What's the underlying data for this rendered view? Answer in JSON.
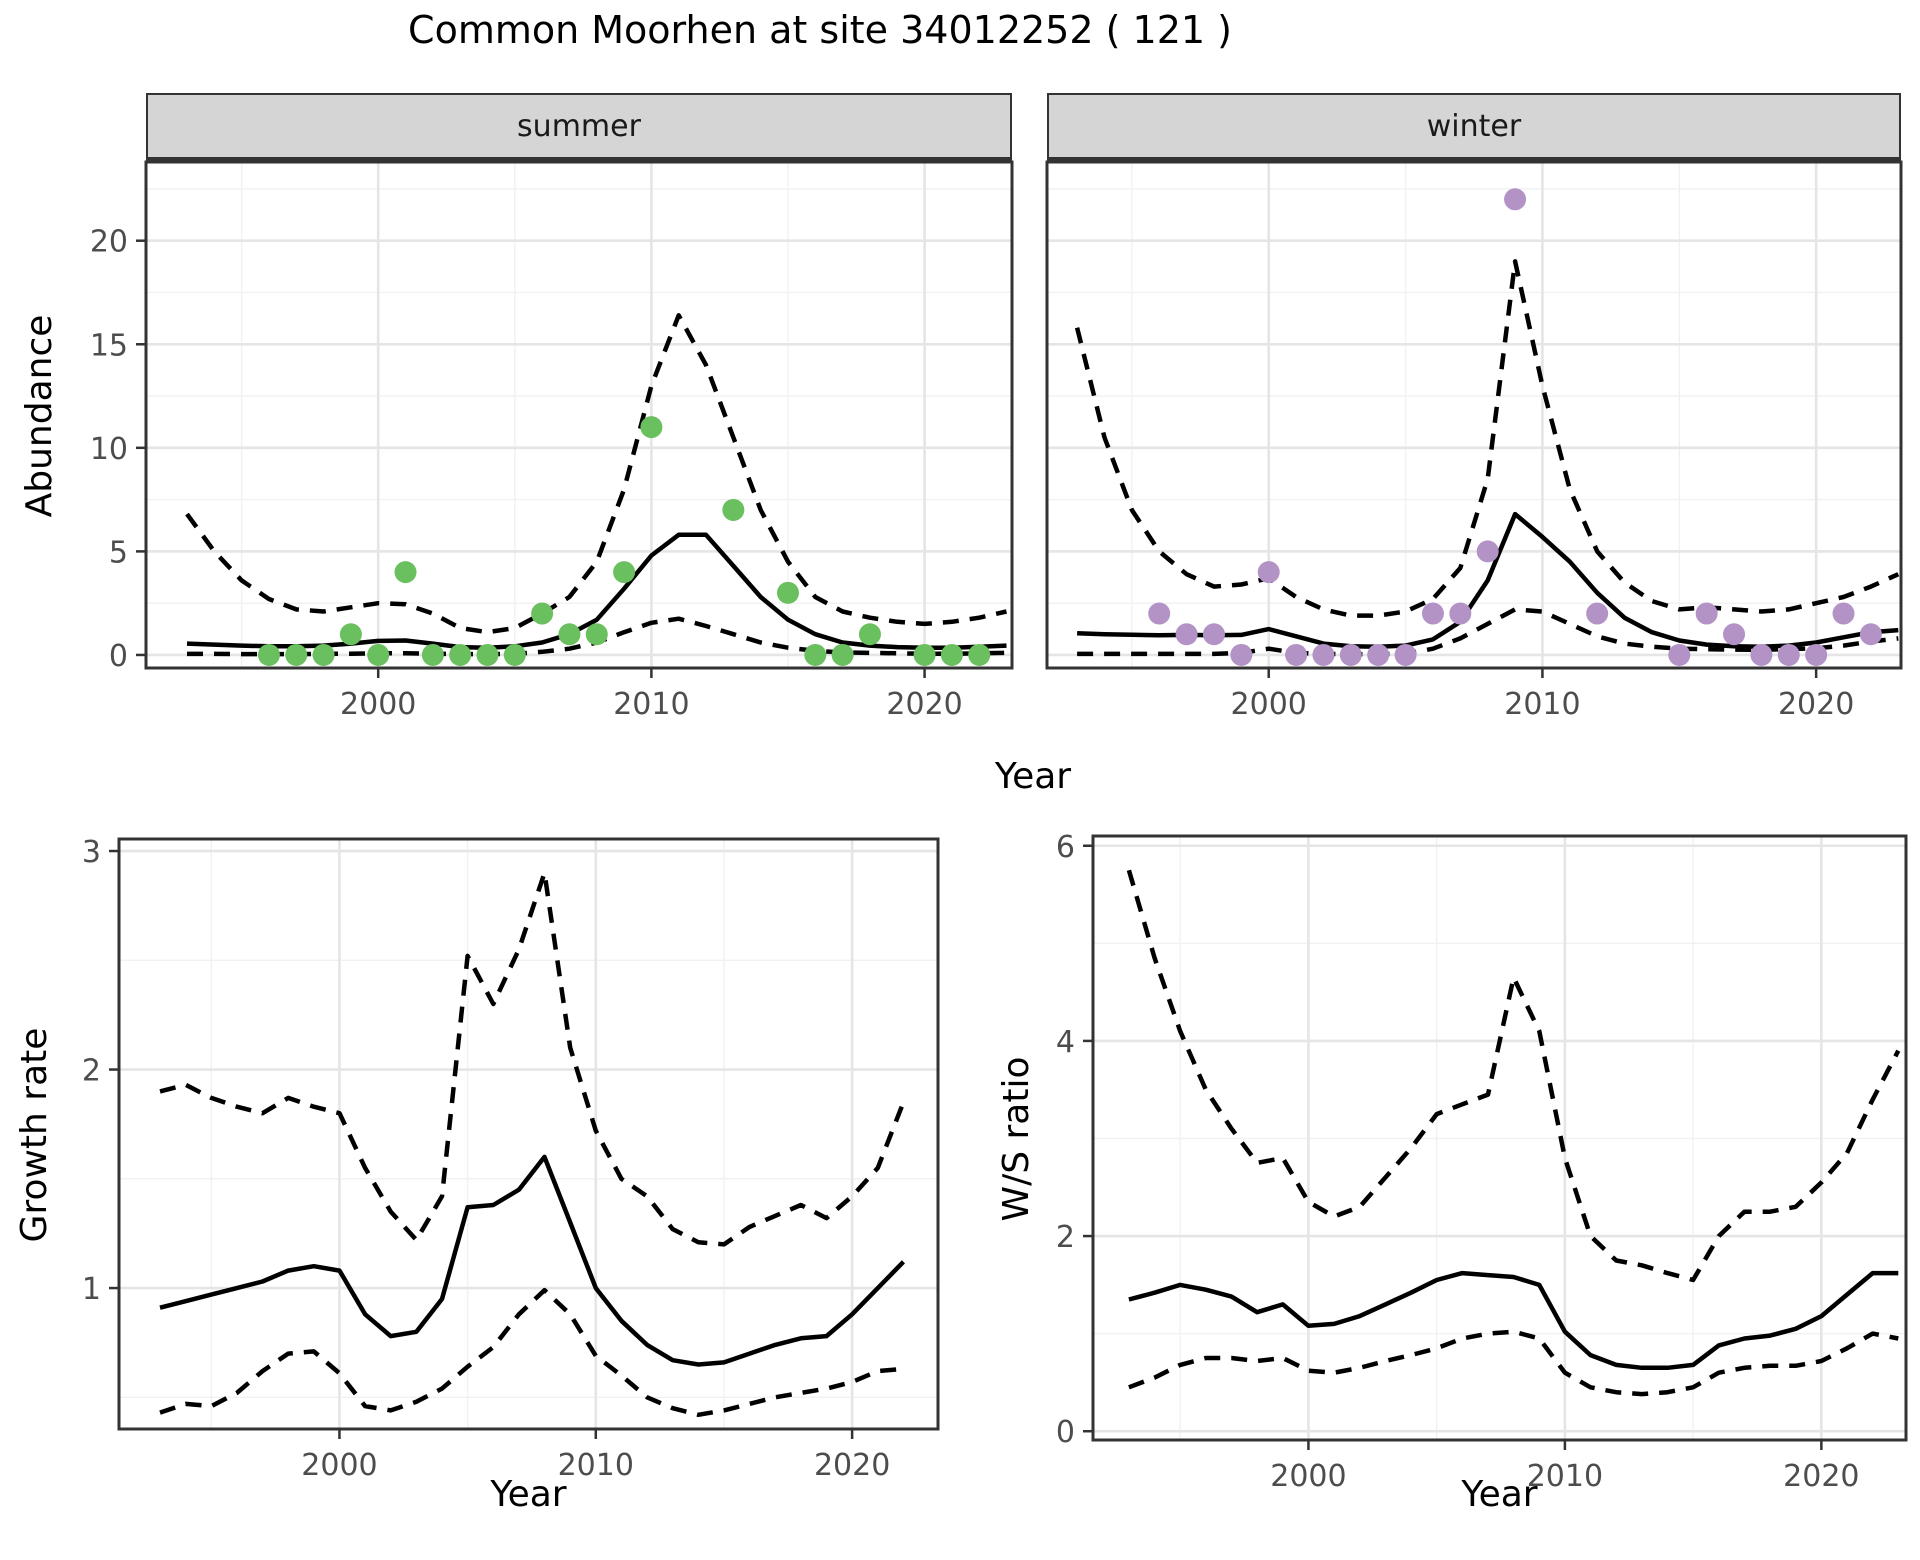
{
  "title": "Common Moorhen at site 34012252 ( 121 )",
  "facets": {
    "summer": "summer",
    "winter": "winter"
  },
  "axis_titles": {
    "abundance": "Abundance",
    "growth": "Growth rate",
    "ws": "W/S ratio",
    "year": "Year"
  },
  "colors": {
    "summer_points": "#6abf5e",
    "winter_points": "#b392c6",
    "line": "#000000",
    "grid_major": "#e5e5e5",
    "grid_minor": "#f1f1f1",
    "border": "#333333",
    "tick_mark": "#333333",
    "tick_text": "#4d4d4d",
    "strip_bg": "#d5d5d5"
  },
  "chart_data": [
    {
      "id": "summer",
      "type": "line",
      "facet_label": "summer",
      "ylabel": "Abundance",
      "xlabel": "Year",
      "xlim": [
        1991.5,
        2023.2
      ],
      "ylim": [
        -0.63,
        23.8
      ],
      "xticks": [
        2000,
        2010,
        2020
      ],
      "yticks": [
        0,
        5,
        10,
        15,
        20
      ],
      "x_minor": [
        1995,
        2005,
        2015
      ],
      "y_minor": [
        2.5,
        7.5,
        12.5,
        17.5,
        22.5
      ],
      "show_ylab": true,
      "legend": "none",
      "grid": true,
      "series": [
        {
          "name": "upper-ci",
          "style": "dashed",
          "x": [
            1993,
            1994,
            1995,
            1996,
            1997,
            1998,
            1999,
            2000,
            2001,
            2002,
            2003,
            2004,
            2005,
            2006,
            2007,
            2008,
            2009,
            2010,
            2011,
            2012,
            2013,
            2014,
            2015,
            2016,
            2017,
            2018,
            2019,
            2020,
            2021,
            2022,
            2023
          ],
          "y": [
            6.8,
            5.0,
            3.6,
            2.7,
            2.2,
            2.1,
            2.3,
            2.5,
            2.45,
            2.0,
            1.3,
            1.1,
            1.3,
            2.0,
            2.8,
            4.5,
            8.0,
            13.0,
            16.4,
            14.0,
            10.5,
            7.0,
            4.5,
            2.8,
            2.1,
            1.8,
            1.6,
            1.5,
            1.6,
            1.8,
            2.1
          ]
        },
        {
          "name": "lower-ci",
          "style": "dashed",
          "x": [
            1993,
            1994,
            1995,
            1996,
            1997,
            1998,
            1999,
            2000,
            2001,
            2002,
            2003,
            2004,
            2005,
            2006,
            2007,
            2008,
            2009,
            2010,
            2011,
            2012,
            2013,
            2014,
            2015,
            2016,
            2017,
            2018,
            2019,
            2020,
            2021,
            2022,
            2023
          ],
          "y": [
            0.05,
            0.05,
            0.04,
            0.04,
            0.04,
            0.05,
            0.06,
            0.08,
            0.08,
            0.06,
            0.04,
            0.04,
            0.05,
            0.15,
            0.3,
            0.6,
            1.1,
            1.55,
            1.75,
            1.4,
            1.0,
            0.6,
            0.35,
            0.2,
            0.12,
            0.1,
            0.08,
            0.06,
            0.06,
            0.08,
            0.1
          ]
        },
        {
          "name": "fit",
          "style": "solid",
          "x": [
            1993,
            1994,
            1995,
            1996,
            1997,
            1998,
            1999,
            2000,
            2001,
            2002,
            2003,
            2004,
            2005,
            2006,
            2007,
            2008,
            2009,
            2010,
            2011,
            2012,
            2013,
            2014,
            2015,
            2016,
            2017,
            2018,
            2019,
            2020,
            2021,
            2022,
            2023
          ],
          "y": [
            0.55,
            0.5,
            0.45,
            0.42,
            0.42,
            0.45,
            0.55,
            0.68,
            0.7,
            0.55,
            0.38,
            0.35,
            0.42,
            0.6,
            1.0,
            1.7,
            3.2,
            4.8,
            5.8,
            5.8,
            4.3,
            2.8,
            1.7,
            1.0,
            0.6,
            0.45,
            0.38,
            0.35,
            0.35,
            0.4,
            0.45
          ]
        },
        {
          "name": "observed",
          "style": "points",
          "color": "#6abf5e",
          "x": [
            1996,
            1997,
            1998,
            1999,
            2000,
            2001,
            2002,
            2003,
            2004,
            2005,
            2006,
            2007,
            2008,
            2009,
            2010,
            2013,
            2015,
            2016,
            2017,
            2018,
            2020,
            2021,
            2022
          ],
          "y": [
            0,
            0,
            0,
            1,
            0,
            4,
            0,
            0,
            0,
            0,
            2,
            1,
            1,
            4,
            11,
            7,
            3,
            0,
            0,
            1,
            0,
            0,
            0
          ]
        }
      ]
    },
    {
      "id": "winter",
      "type": "line",
      "facet_label": "winter",
      "ylabel": "Abundance",
      "xlabel": "Year",
      "xlim": [
        1991.9,
        2023.1
      ],
      "ylim": [
        -0.63,
        23.8
      ],
      "xticks": [
        2000,
        2010,
        2020
      ],
      "yticks": [
        0,
        5,
        10,
        15,
        20
      ],
      "x_minor": [
        1995,
        2005,
        2015
      ],
      "y_minor": [
        2.5,
        7.5,
        12.5,
        17.5,
        22.5
      ],
      "show_ylab": false,
      "legend": "none",
      "grid": true,
      "series": [
        {
          "name": "upper-ci",
          "style": "dashed",
          "x": [
            1993,
            1994,
            1995,
            1996,
            1997,
            1998,
            1999,
            2000,
            2001,
            2002,
            2003,
            2004,
            2005,
            2006,
            2007,
            2008,
            2009,
            2010,
            2011,
            2012,
            2013,
            2014,
            2015,
            2016,
            2017,
            2018,
            2019,
            2020,
            2021,
            2022,
            2023
          ],
          "y": [
            15.8,
            10.5,
            7.0,
            5.0,
            3.9,
            3.3,
            3.4,
            3.7,
            2.8,
            2.2,
            1.9,
            1.9,
            2.1,
            2.7,
            4.2,
            8.5,
            19.0,
            13.0,
            8.0,
            5.0,
            3.5,
            2.6,
            2.2,
            2.3,
            2.2,
            2.1,
            2.2,
            2.5,
            2.8,
            3.3,
            3.9
          ]
        },
        {
          "name": "lower-ci",
          "style": "dashed",
          "x": [
            1993,
            1994,
            1995,
            1996,
            1997,
            1998,
            1999,
            2000,
            2001,
            2002,
            2003,
            2004,
            2005,
            2006,
            2007,
            2008,
            2009,
            2010,
            2011,
            2012,
            2013,
            2014,
            2015,
            2016,
            2017,
            2018,
            2019,
            2020,
            2021,
            2022,
            2023
          ],
          "y": [
            0.05,
            0.05,
            0.05,
            0.05,
            0.05,
            0.05,
            0.1,
            0.3,
            0.1,
            0.05,
            0.04,
            0.04,
            0.05,
            0.3,
            0.8,
            1.5,
            2.2,
            2.1,
            1.5,
            0.9,
            0.55,
            0.4,
            0.3,
            0.28,
            0.26,
            0.25,
            0.28,
            0.32,
            0.45,
            0.65,
            0.8
          ]
        },
        {
          "name": "fit",
          "style": "solid",
          "x": [
            1993,
            1994,
            1995,
            1996,
            1997,
            1998,
            1999,
            2000,
            2001,
            2002,
            2003,
            2004,
            2005,
            2006,
            2007,
            2008,
            2009,
            2010,
            2011,
            2012,
            2013,
            2014,
            2015,
            2016,
            2017,
            2018,
            2019,
            2020,
            2021,
            2022,
            2023
          ],
          "y": [
            1.05,
            1.0,
            0.98,
            0.95,
            0.97,
            0.95,
            0.97,
            1.25,
            0.9,
            0.55,
            0.42,
            0.4,
            0.45,
            0.75,
            1.6,
            3.6,
            6.8,
            5.7,
            4.5,
            3.0,
            1.8,
            1.1,
            0.7,
            0.5,
            0.42,
            0.4,
            0.45,
            0.6,
            0.85,
            1.1,
            1.2
          ]
        },
        {
          "name": "observed",
          "style": "points",
          "color": "#b392c6",
          "x": [
            1996,
            1997,
            1998,
            1999,
            2000,
            2001,
            2002,
            2003,
            2004,
            2005,
            2006,
            2007,
            2008,
            2009,
            2012,
            2015,
            2016,
            2017,
            2018,
            2019,
            2020,
            2021,
            2022
          ],
          "y": [
            2,
            1,
            1,
            0,
            4,
            0,
            0,
            0,
            0,
            0,
            2,
            2,
            5,
            22,
            2,
            0,
            2,
            1,
            0,
            0,
            0,
            2,
            1
          ]
        }
      ]
    },
    {
      "id": "growth",
      "type": "line",
      "facet_label": "",
      "ylabel": "Growth rate",
      "xlabel": "Year",
      "xlim": [
        1991.4,
        2023.35
      ],
      "ylim": [
        0.355,
        3.055
      ],
      "xticks": [
        2000,
        2010,
        2020
      ],
      "yticks": [
        1,
        2,
        3
      ],
      "x_minor": [
        1995,
        2005,
        2015
      ],
      "y_minor": [
        0.5,
        1.5,
        2.5
      ],
      "show_ylab": true,
      "legend": "none",
      "grid": true,
      "series": [
        {
          "name": "upper-ci",
          "style": "dashed",
          "x": [
            1993,
            1994,
            1995,
            1996,
            1997,
            1998,
            1999,
            2000,
            2001,
            2002,
            2003,
            2004,
            2005,
            2006,
            2007,
            2008,
            2009,
            2010,
            2011,
            2012,
            2013,
            2014,
            2015,
            2016,
            2017,
            2018,
            2019,
            2020,
            2021,
            2022
          ],
          "y": [
            1.9,
            1.93,
            1.87,
            1.83,
            1.8,
            1.87,
            1.83,
            1.8,
            1.55,
            1.35,
            1.22,
            1.42,
            2.52,
            2.3,
            2.55,
            2.9,
            2.1,
            1.72,
            1.5,
            1.42,
            1.27,
            1.21,
            1.2,
            1.28,
            1.33,
            1.38,
            1.32,
            1.42,
            1.55,
            1.85
          ]
        },
        {
          "name": "lower-ci",
          "style": "dashed",
          "x": [
            1993,
            1994,
            1995,
            1996,
            1997,
            1998,
            1999,
            2000,
            2001,
            2002,
            2003,
            2004,
            2005,
            2006,
            2007,
            2008,
            2009,
            2010,
            2011,
            2012,
            2013,
            2014,
            2015,
            2016,
            2017,
            2018,
            2019,
            2020,
            2021,
            2022
          ],
          "y": [
            0.43,
            0.47,
            0.46,
            0.52,
            0.62,
            0.7,
            0.71,
            0.61,
            0.46,
            0.44,
            0.48,
            0.54,
            0.64,
            0.73,
            0.88,
            0.99,
            0.88,
            0.69,
            0.6,
            0.5,
            0.45,
            0.42,
            0.44,
            0.47,
            0.5,
            0.52,
            0.54,
            0.57,
            0.62,
            0.63
          ]
        },
        {
          "name": "fit",
          "style": "solid",
          "x": [
            1993,
            1994,
            1995,
            1996,
            1997,
            1998,
            1999,
            2000,
            2001,
            2002,
            2003,
            2004,
            2005,
            2006,
            2007,
            2008,
            2009,
            2010,
            2011,
            2012,
            2013,
            2014,
            2015,
            2016,
            2017,
            2018,
            2019,
            2020,
            2021,
            2022
          ],
          "y": [
            0.91,
            0.94,
            0.97,
            1.0,
            1.03,
            1.08,
            1.1,
            1.08,
            0.88,
            0.78,
            0.8,
            0.95,
            1.37,
            1.38,
            1.45,
            1.6,
            1.3,
            1.0,
            0.85,
            0.74,
            0.67,
            0.65,
            0.66,
            0.7,
            0.74,
            0.77,
            0.78,
            0.88,
            1.0,
            1.12
          ]
        }
      ]
    },
    {
      "id": "ws",
      "type": "line",
      "facet_label": "",
      "ylabel": "W/S ratio",
      "xlabel": "Year",
      "xlim": [
        1991.6,
        2023.3
      ],
      "ylim": [
        -0.09,
        6.1
      ],
      "xticks": [
        2000,
        2010,
        2020
      ],
      "yticks": [
        0,
        2,
        4,
        6
      ],
      "x_minor": [
        1995,
        2005,
        2015
      ],
      "y_minor": [
        1,
        3,
        5
      ],
      "show_ylab": true,
      "legend": "none",
      "grid": true,
      "series": [
        {
          "name": "upper-ci",
          "style": "dashed",
          "x": [
            1993,
            1994,
            1995,
            1996,
            1997,
            1998,
            1999,
            2000,
            2001,
            2002,
            2003,
            2004,
            2005,
            2006,
            2007,
            2008,
            2009,
            2010,
            2011,
            2012,
            2013,
            2014,
            2015,
            2016,
            2017,
            2018,
            2019,
            2020,
            2021,
            2022,
            2023
          ],
          "y": [
            5.75,
            4.85,
            4.1,
            3.5,
            3.1,
            2.75,
            2.8,
            2.35,
            2.2,
            2.3,
            2.6,
            2.9,
            3.25,
            3.35,
            3.45,
            4.65,
            4.1,
            2.8,
            2.0,
            1.75,
            1.7,
            1.62,
            1.55,
            2.0,
            2.25,
            2.25,
            2.3,
            2.55,
            2.85,
            3.4,
            3.9
          ]
        },
        {
          "name": "lower-ci",
          "style": "dashed",
          "x": [
            1993,
            1994,
            1995,
            1996,
            1997,
            1998,
            1999,
            2000,
            2001,
            2002,
            2003,
            2004,
            2005,
            2006,
            2007,
            2008,
            2009,
            2010,
            2011,
            2012,
            2013,
            2014,
            2015,
            2016,
            2017,
            2018,
            2019,
            2020,
            2021,
            2022,
            2023
          ],
          "y": [
            0.45,
            0.55,
            0.68,
            0.75,
            0.75,
            0.72,
            0.75,
            0.62,
            0.6,
            0.65,
            0.72,
            0.78,
            0.85,
            0.95,
            1.0,
            1.02,
            0.95,
            0.6,
            0.45,
            0.4,
            0.38,
            0.4,
            0.45,
            0.6,
            0.65,
            0.67,
            0.67,
            0.72,
            0.85,
            1.0,
            0.95
          ]
        },
        {
          "name": "fit",
          "style": "solid",
          "x": [
            1993,
            1994,
            1995,
            1996,
            1997,
            1998,
            1999,
            2000,
            2001,
            2002,
            2003,
            2004,
            2005,
            2006,
            2007,
            2008,
            2009,
            2010,
            2011,
            2012,
            2013,
            2014,
            2015,
            2016,
            2017,
            2018,
            2019,
            2020,
            2021,
            2022,
            2023
          ],
          "y": [
            1.35,
            1.42,
            1.5,
            1.45,
            1.38,
            1.22,
            1.3,
            1.08,
            1.1,
            1.18,
            1.3,
            1.42,
            1.55,
            1.62,
            1.6,
            1.58,
            1.5,
            1.02,
            0.78,
            0.68,
            0.65,
            0.65,
            0.68,
            0.88,
            0.95,
            0.98,
            1.05,
            1.18,
            1.4,
            1.62,
            1.62
          ]
        }
      ]
    }
  ]
}
